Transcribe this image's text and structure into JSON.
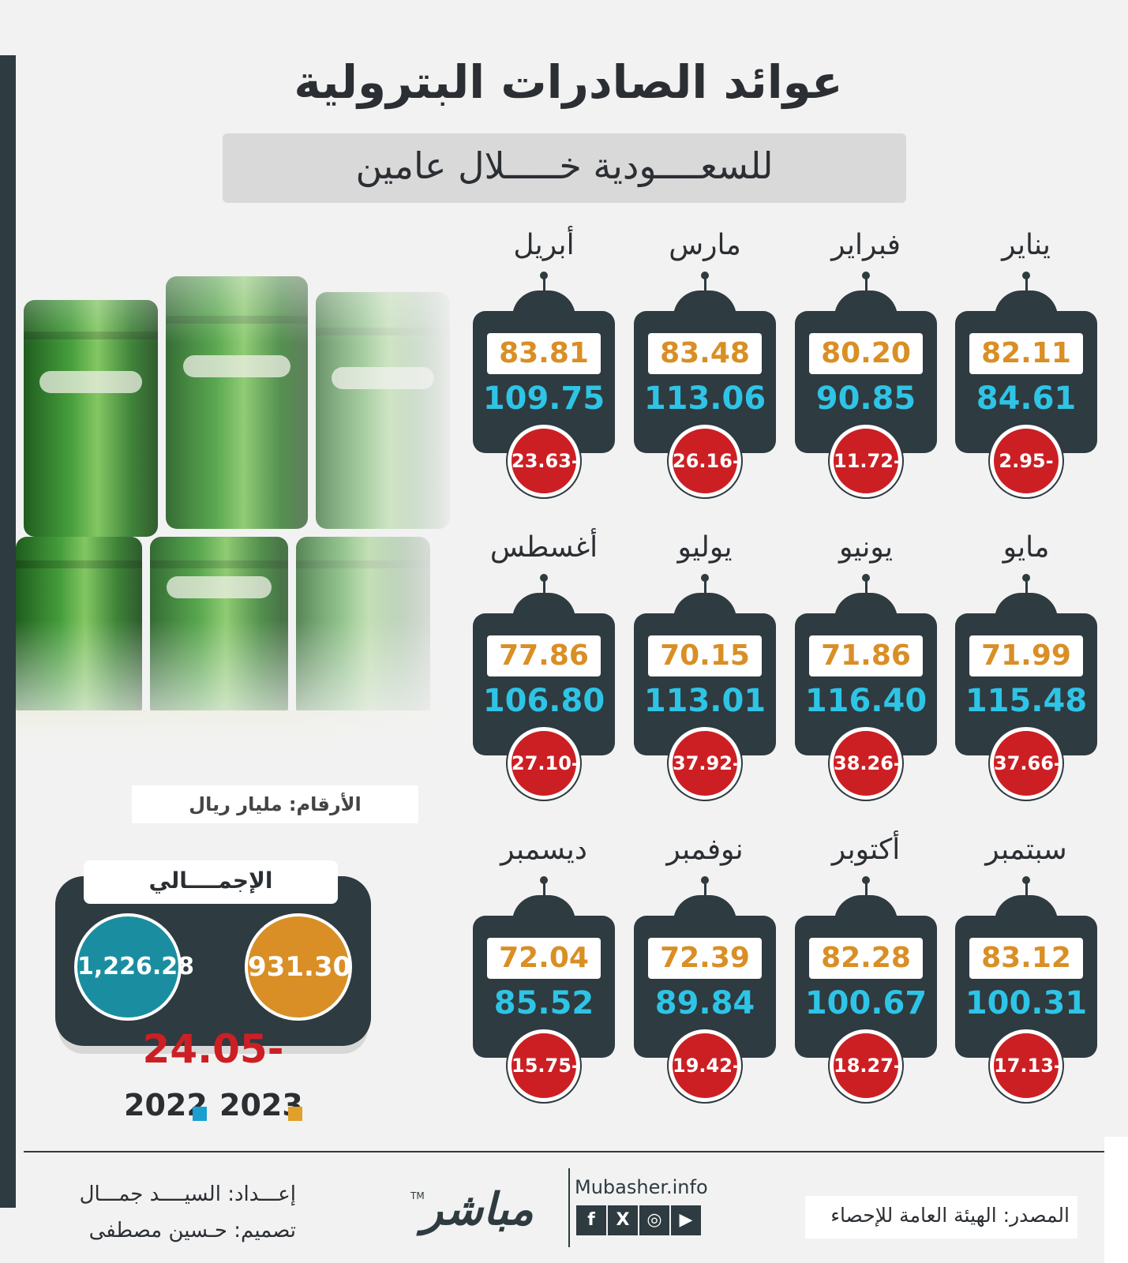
{
  "title": "عوائد الصادرات البترولية",
  "subtitle": "للسعــــودية خـــــلال عامين",
  "units_label": "الأرقام: مليار ريال",
  "total": {
    "label": "الإجمــــالي",
    "value_2022": "1,226.28",
    "value_2023": "931.30",
    "difference": "24.05-"
  },
  "legend": {
    "year_2022": "2022",
    "year_2023": "2023",
    "color_2022": "#1a9fd0",
    "color_2023": "#e0a02a"
  },
  "colors": {
    "dark": "#2e3b40",
    "value_2023": "#d98f25",
    "value_2022": "#2ec4e6",
    "difference": "#cc1f24"
  },
  "months": [
    {
      "name": "يناير",
      "v2023": "82.11",
      "v2022": "84.61",
      "diff": "2.95-"
    },
    {
      "name": "فبراير",
      "v2023": "80.20",
      "v2022": "90.85",
      "diff": "11.72-"
    },
    {
      "name": "مارس",
      "v2023": "83.48",
      "v2022": "113.06",
      "diff": "26.16-"
    },
    {
      "name": "أبريل",
      "v2023": "83.81",
      "v2022": "109.75",
      "diff": "23.63-"
    },
    {
      "name": "مايو",
      "v2023": "71.99",
      "v2022": "115.48",
      "diff": "37.66-"
    },
    {
      "name": "يونيو",
      "v2023": "71.86",
      "v2022": "116.40",
      "diff": "38.26-"
    },
    {
      "name": "يوليو",
      "v2023": "70.15",
      "v2022": "113.01",
      "diff": "37.92-"
    },
    {
      "name": "أغسطس",
      "v2023": "77.86",
      "v2022": "106.80",
      "diff": "27.10-"
    },
    {
      "name": "سبتمبر",
      "v2023": "83.12",
      "v2022": "100.31",
      "diff": "17.13-"
    },
    {
      "name": "أكتوبر",
      "v2023": "82.28",
      "v2022": "100.67",
      "diff": "18.27-"
    },
    {
      "name": "نوفمبر",
      "v2023": "72.39",
      "v2022": "89.84",
      "diff": "19.42-"
    },
    {
      "name": "ديسمبر",
      "v2023": "72.04",
      "v2022": "85.52",
      "diff": "15.75-"
    }
  ],
  "footer": {
    "prepared_by": "إعـــداد: السيــــد جمـــال",
    "designed_by": "تصميم: حـسين مصطفى",
    "brand": "مباشر",
    "trademark": "TM",
    "website": "Mubasher.info",
    "socials": [
      "facebook-icon",
      "x-icon",
      "instagram-icon",
      "youtube-icon"
    ],
    "source": "المصدر: الهيئة العامة للإحصاء"
  }
}
